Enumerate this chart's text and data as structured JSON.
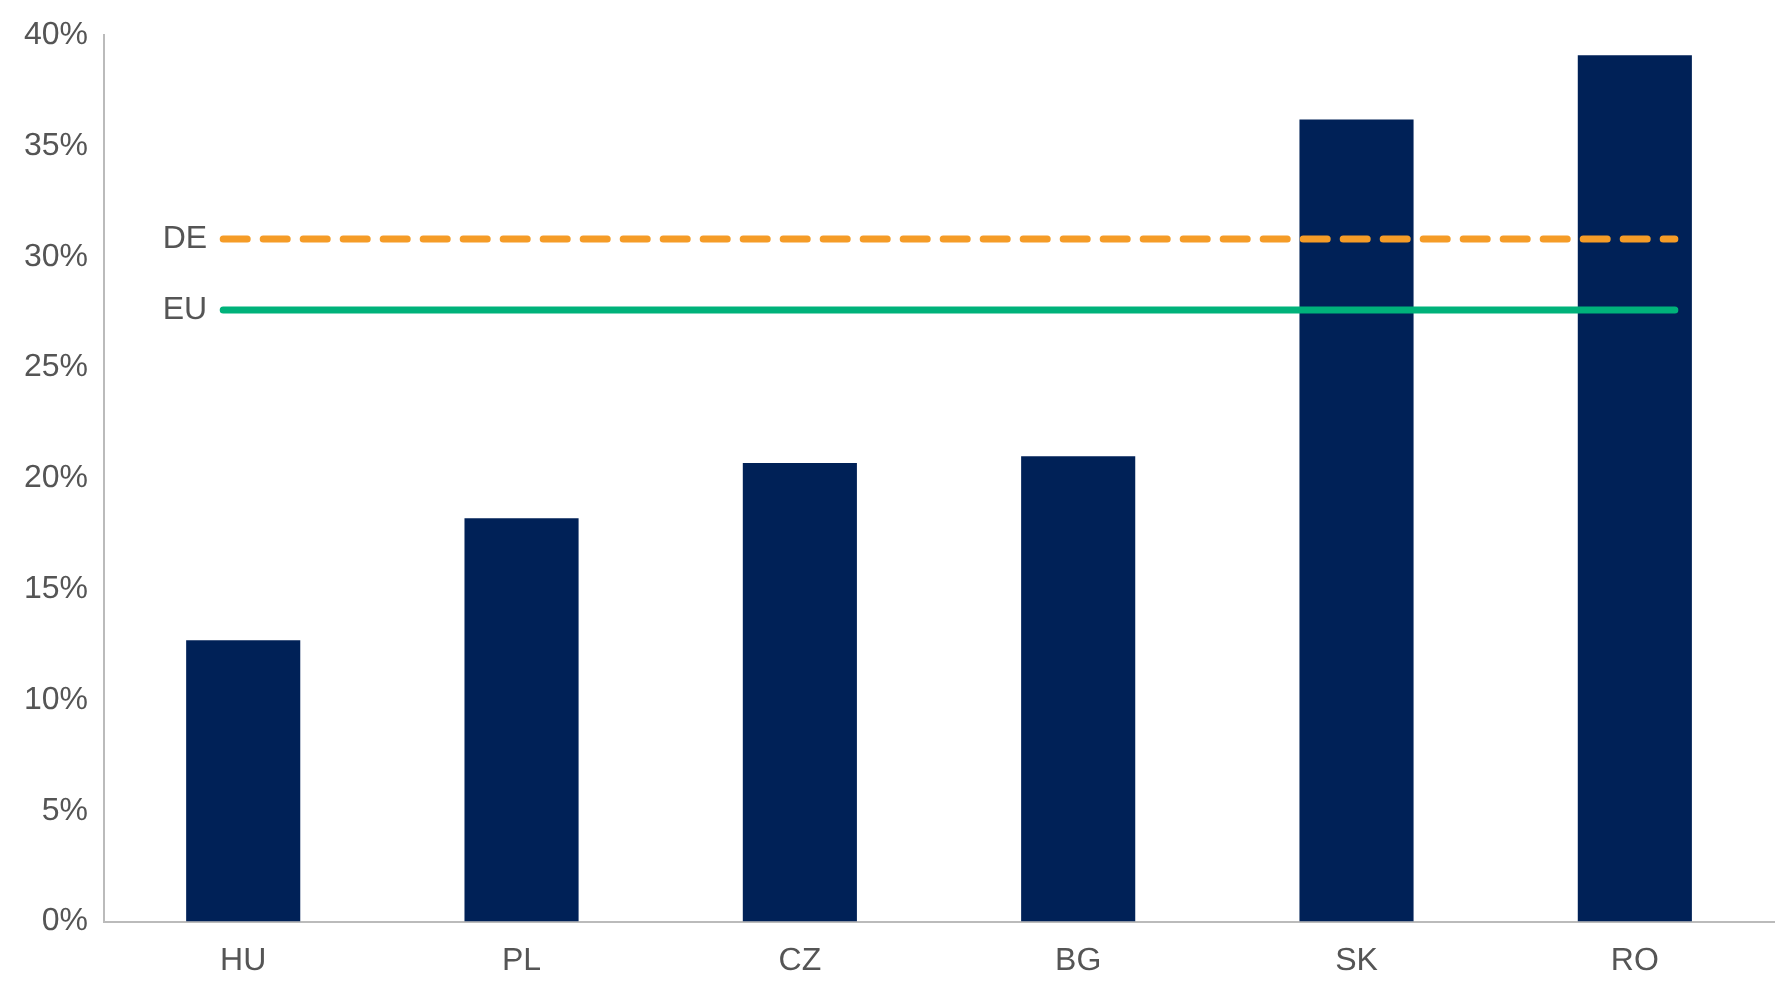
{
  "chart_data": {
    "type": "bar",
    "categories": [
      "HU",
      "PL",
      "CZ",
      "BG",
      "SK",
      "RO"
    ],
    "values": [
      12.7,
      18.2,
      20.7,
      21.0,
      36.2,
      39.1
    ],
    "color": "#002157",
    "ylim": [
      0,
      40
    ],
    "yticks": [
      {
        "value": 0,
        "label": "0%"
      },
      {
        "value": 5,
        "label": "5%"
      },
      {
        "value": 10,
        "label": "10%"
      },
      {
        "value": 15,
        "label": "15%"
      },
      {
        "value": 20,
        "label": "20%"
      },
      {
        "value": 25,
        "label": "25%"
      },
      {
        "value": 30,
        "label": "30%"
      },
      {
        "value": 35,
        "label": "35%"
      },
      {
        "value": 40,
        "label": "40%"
      }
    ],
    "ref_lines": [
      {
        "axis": "y",
        "value": 30.8,
        "label": "DE",
        "color": "#f59c27",
        "line_style": "dashed"
      },
      {
        "axis": "y",
        "value": 27.6,
        "label": "EU",
        "color": "#00b27a",
        "line_style": "solid"
      }
    ],
    "grid": false,
    "legend": false
  }
}
